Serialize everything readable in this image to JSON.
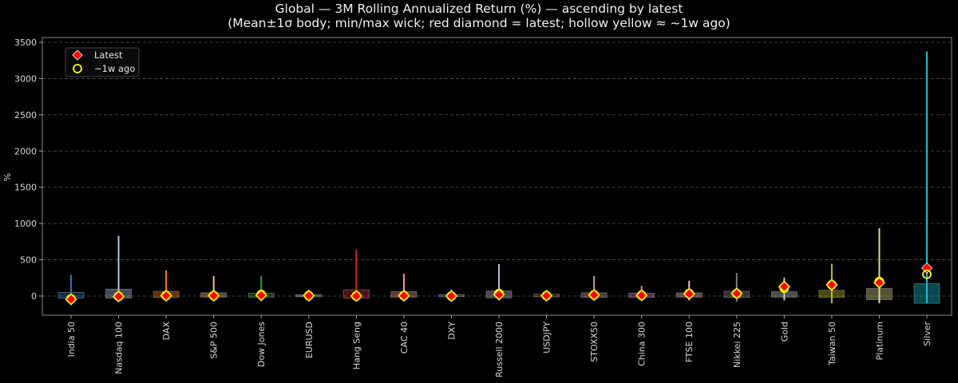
{
  "title": {
    "line1": "Global — 3M Rolling Annualized Return (%) — ascending by latest",
    "line2": "(Mean±1σ body; min/max wick; red diamond = latest; hollow yellow ≈ ~1w ago)"
  },
  "axes": {
    "ylabel": "%",
    "yticks": [
      0,
      500,
      1000,
      1500,
      2000,
      2500,
      3000,
      3500
    ]
  },
  "legend": {
    "items": [
      {
        "label": "Latest",
        "marker": "red-diamond"
      },
      {
        "label": "~1w ago",
        "marker": "hollow-yellow-circle"
      }
    ]
  },
  "colors": {
    "background": "#000000",
    "grid": "#555555",
    "latest_marker": "#ff0000",
    "week_ago_marker": "#ffff00"
  },
  "chart_data": {
    "type": "candlestick-range",
    "title": "Global — 3M Rolling Annualized Return (%) — ascending by latest",
    "subtitle": "(Mean±1σ body; min/max wick; red diamond = latest; hollow yellow ≈ ~1w ago)",
    "xlabel": "",
    "ylabel": "%",
    "ylim": [
      -270,
      3550
    ],
    "grid": true,
    "legend_position": "upper left",
    "categories": [
      "India 50",
      "Nasdaq 100",
      "DAX",
      "S&P 500",
      "Dow Jones",
      "EURUSD",
      "Hang Seng",
      "CAC 40",
      "DXY",
      "Russell 2000",
      "USDJPY",
      "STOXX50",
      "China 300",
      "FTSE 100",
      "Nikkei 225",
      "Gold",
      "Taiwan 50",
      "Platinum",
      "Silver"
    ],
    "series": [
      {
        "name": "mean_minus_1sd",
        "values": [
          -30,
          -30,
          -20,
          -15,
          -15,
          -10,
          -30,
          -15,
          -10,
          -25,
          -10,
          -20,
          -20,
          -15,
          -20,
          -15,
          -20,
          -50,
          -100
        ]
      },
      {
        "name": "mean_plus_1sd",
        "values": [
          50,
          95,
          65,
          45,
          40,
          20,
          85,
          60,
          20,
          70,
          25,
          45,
          40,
          45,
          65,
          60,
          80,
          105,
          170
        ]
      },
      {
        "name": "min",
        "values": [
          -55,
          -45,
          -30,
          -40,
          -30,
          -15,
          -50,
          -40,
          -15,
          -60,
          -20,
          -35,
          -30,
          -60,
          -80,
          -60,
          -100,
          -100,
          -100
        ]
      },
      {
        "name": "max",
        "values": [
          295,
          830,
          355,
          275,
          280,
          25,
          645,
          305,
          95,
          440,
          60,
          275,
          140,
          210,
          320,
          255,
          445,
          935,
          3375
        ]
      },
      {
        "name": "latest",
        "values": [
          -45,
          -5,
          5,
          5,
          10,
          5,
          0,
          5,
          0,
          20,
          5,
          15,
          10,
          30,
          35,
          130,
          155,
          185,
          385
        ]
      },
      {
        "name": "week_ago",
        "values": [
          -40,
          -5,
          5,
          5,
          20,
          5,
          0,
          5,
          0,
          35,
          5,
          15,
          10,
          35,
          35,
          110,
          155,
          200,
          300
        ]
      }
    ],
    "box_colors": [
      "#1f77b4",
      "#aec7e8",
      "#ff7f0e",
      "#ffbb78",
      "#2ca02c",
      "#98df8a",
      "#d62728",
      "#ff9896",
      "#9467bd",
      "#c5b0d5",
      "#8c564b",
      "#c49c94",
      "#e377c2",
      "#f7b6d2",
      "#7f7f7f",
      "#c7c7c7",
      "#bcbd22",
      "#dbdb8d",
      "#17becf"
    ]
  }
}
